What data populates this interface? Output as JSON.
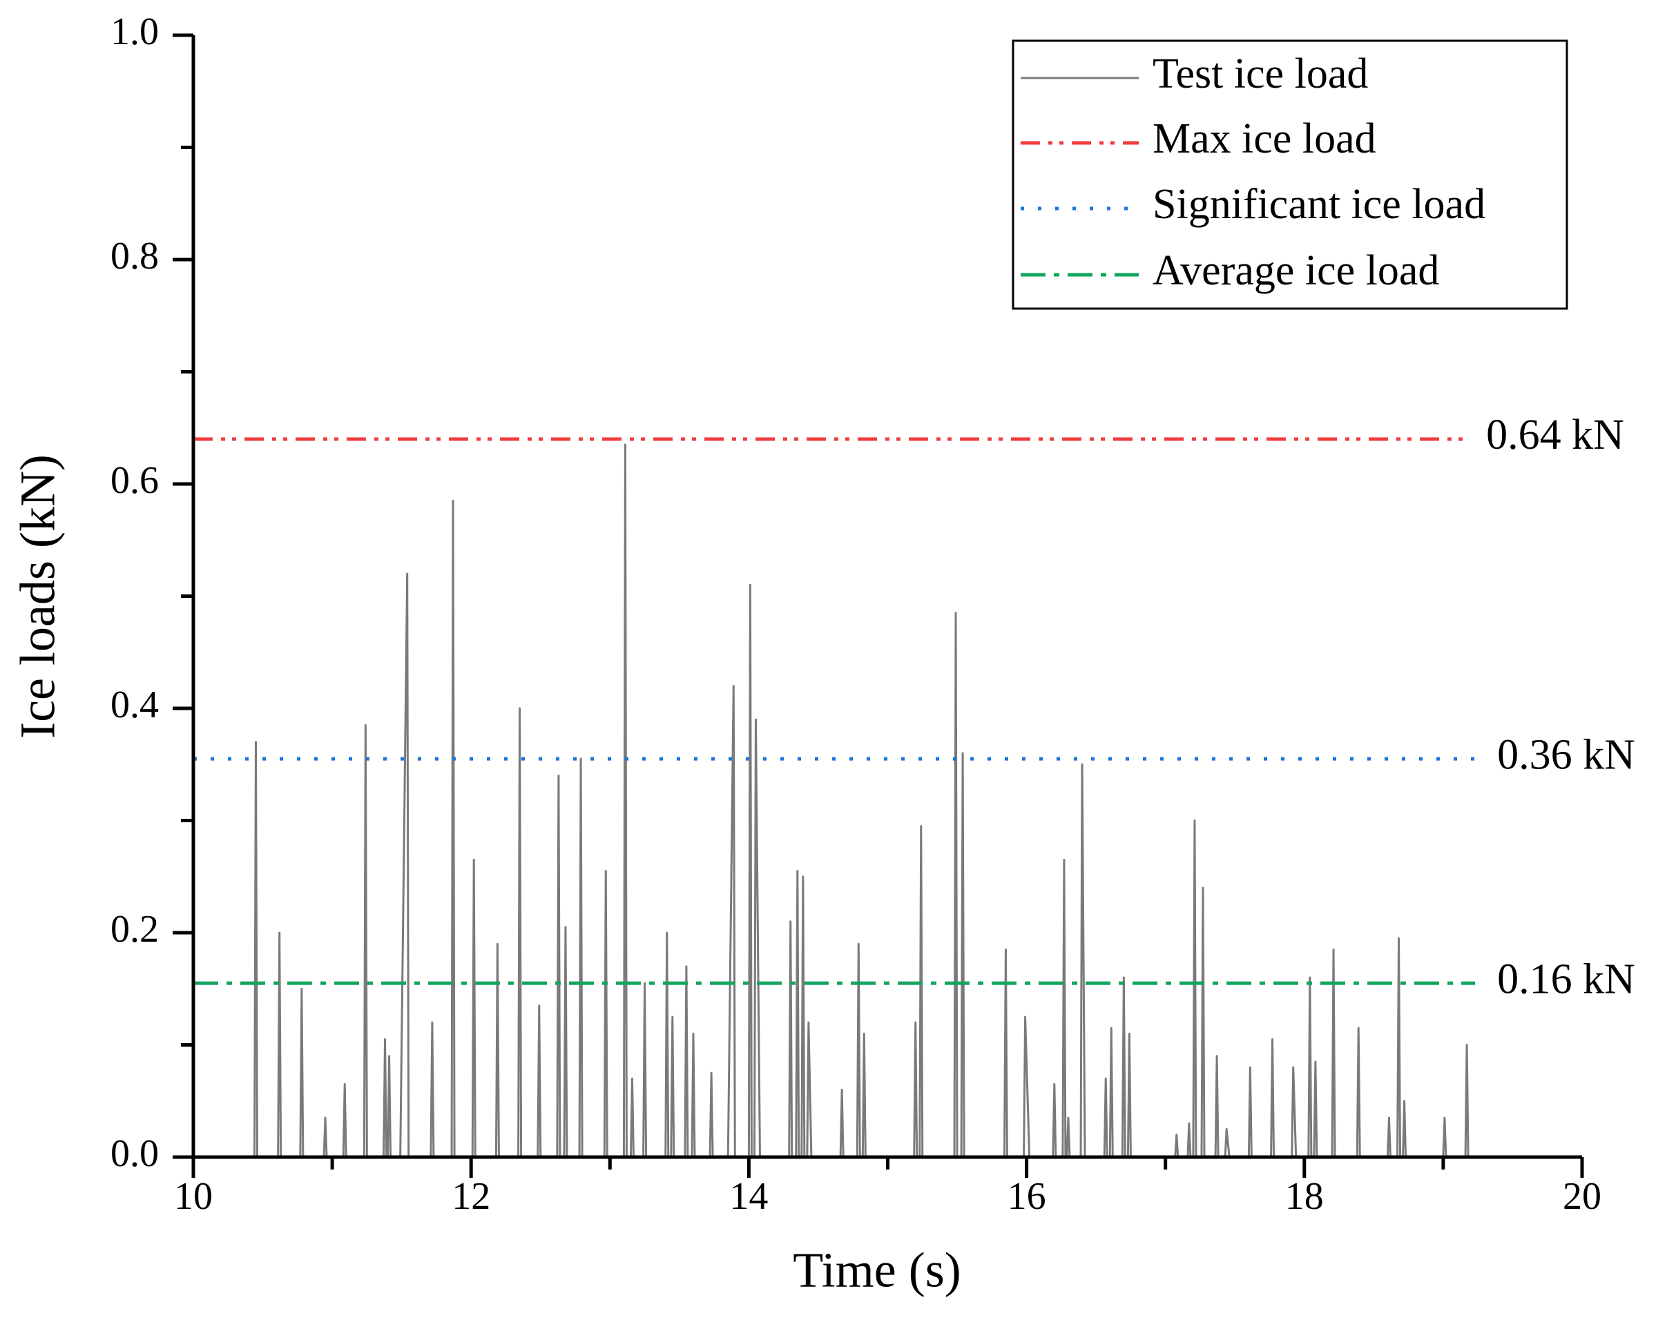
{
  "chart_data": {
    "type": "line",
    "xlabel": "Time (s)",
    "ylabel": "Ice loads (kN)",
    "xlim": [
      10,
      20
    ],
    "ylim": [
      0,
      1
    ],
    "xticks": [
      10,
      12,
      14,
      16,
      18,
      20
    ],
    "xminor_ticks": [
      11,
      13,
      15,
      17,
      19
    ],
    "yticks": [
      {
        "value": 0,
        "label": "0.0"
      },
      {
        "value": 0.2,
        "label": "0.2"
      },
      {
        "value": 0.4,
        "label": "0.4"
      },
      {
        "value": 0.6,
        "label": "0.6"
      },
      {
        "value": 0.8,
        "label": "0.8"
      },
      {
        "value": 1,
        "label": "1.0"
      }
    ],
    "yminor_ticks": [
      0.1,
      0.3,
      0.5,
      0.7,
      0.9
    ],
    "legend": "upper right",
    "series": [
      {
        "name": "Test ice load",
        "color": "#7a7a7a",
        "style": "solid",
        "x": [
          10.44,
          10.45,
          10.46,
          10.61,
          10.62,
          10.63,
          10.77,
          10.78,
          10.79,
          10.94,
          10.95,
          10.96,
          11.08,
          11.09,
          11.1,
          11.23,
          11.24,
          11.25,
          11.37,
          11.38,
          11.39,
          11.4,
          11.41,
          11.42,
          11.49,
          11.54,
          11.55,
          11.71,
          11.72,
          11.73,
          11.86,
          11.87,
          11.88,
          12.01,
          12.02,
          12.03,
          12.18,
          12.19,
          12.2,
          12.34,
          12.35,
          12.36,
          12.48,
          12.49,
          12.5,
          12.62,
          12.63,
          12.64,
          12.67,
          12.68,
          12.69,
          12.78,
          12.79,
          12.8,
          12.96,
          12.97,
          12.98,
          13.1,
          13.11,
          13.12,
          13.15,
          13.16,
          13.17,
          13.24,
          13.25,
          13.26,
          13.4,
          13.41,
          13.42,
          13.44,
          13.45,
          13.46,
          13.54,
          13.55,
          13.56,
          13.59,
          13.6,
          13.61,
          13.72,
          13.73,
          13.74,
          13.85,
          13.89,
          13.9,
          14,
          14.01,
          14.02,
          14.04,
          14.05,
          14.08,
          14.29,
          14.3,
          14.31,
          14.34,
          14.35,
          14.36,
          14.38,
          14.39,
          14.4,
          14.42,
          14.43,
          14.45,
          14.66,
          14.67,
          14.68,
          14.78,
          14.79,
          14.8,
          14.82,
          14.83,
          14.84,
          15.19,
          15.2,
          15.21,
          15.23,
          15.24,
          15.25,
          15.48,
          15.49,
          15.5,
          15.53,
          15.54,
          15.55,
          15.84,
          15.85,
          15.86,
          15.98,
          15.99,
          16.02,
          16.19,
          16.2,
          16.21,
          16.26,
          16.27,
          16.28,
          16.29,
          16.3,
          16.31,
          16.39,
          16.4,
          16.42,
          16.56,
          16.57,
          16.58,
          16.6,
          16.61,
          16.62,
          16.69,
          16.7,
          16.71,
          16.73,
          16.74,
          16.75,
          17.07,
          17.08,
          17.09,
          17.16,
          17.17,
          17.18,
          17.2,
          17.21,
          17.22,
          17.26,
          17.27,
          17.28,
          17.36,
          17.37,
          17.38,
          17.43,
          17.44,
          17.46,
          17.6,
          17.61,
          17.62,
          17.76,
          17.77,
          17.78,
          17.91,
          17.92,
          17.94,
          18.03,
          18.04,
          18.05,
          18.07,
          18.08,
          18.09,
          18.2,
          18.21,
          18.22,
          18.38,
          18.39,
          18.4,
          18.6,
          18.61,
          18.62,
          18.67,
          18.68,
          18.69,
          18.71,
          18.72,
          18.73,
          19,
          19.01,
          19.02,
          19.16,
          19.17,
          19.18
        ],
        "values": [
          0,
          0.37,
          0,
          0,
          0.2,
          0,
          0,
          0.15,
          0,
          0,
          0.035,
          0,
          0,
          0.065,
          0,
          0,
          0.385,
          0,
          0,
          0.105,
          0,
          0,
          0.09,
          0,
          0,
          0.52,
          0,
          0,
          0.12,
          0,
          0,
          0.585,
          0,
          0,
          0.265,
          0,
          0,
          0.19,
          0,
          0,
          0.4,
          0,
          0,
          0.135,
          0,
          0,
          0.34,
          0,
          0,
          0.205,
          0,
          0,
          0.355,
          0,
          0,
          0.255,
          0,
          0,
          0.635,
          0,
          0,
          0.07,
          0,
          0,
          0.155,
          0,
          0,
          0.2,
          0,
          0,
          0.125,
          0,
          0,
          0.17,
          0,
          0,
          0.11,
          0,
          0,
          0.075,
          0,
          0,
          0.42,
          0,
          0,
          0.51,
          0,
          0,
          0.39,
          0,
          0,
          0.21,
          0,
          0,
          0.255,
          0,
          0,
          0.25,
          0,
          0,
          0.12,
          0,
          0,
          0.06,
          0,
          0,
          0.19,
          0,
          0,
          0.11,
          0,
          0,
          0.12,
          0,
          0,
          0.295,
          0,
          0,
          0.485,
          0,
          0,
          0.36,
          0,
          0,
          0.185,
          0,
          0,
          0.125,
          0,
          0,
          0.065,
          0,
          0,
          0.265,
          0,
          0,
          0.035,
          0,
          0,
          0.35,
          0,
          0,
          0.07,
          0,
          0,
          0.115,
          0,
          0,
          0.16,
          0,
          0,
          0.11,
          0,
          0,
          0.02,
          0,
          0,
          0.03,
          0,
          0,
          0.3,
          0,
          0,
          0.24,
          0,
          0,
          0.09,
          0,
          0,
          0.025,
          0,
          0,
          0.08,
          0,
          0,
          0.105,
          0,
          0,
          0.08,
          0,
          0,
          0.16,
          0,
          0,
          0.085,
          0,
          0,
          0.185,
          0,
          0,
          0.115,
          0,
          0,
          0.035,
          0,
          0,
          0.195,
          0,
          0,
          0.05,
          0,
          0,
          0.035,
          0,
          0,
          0.1,
          0
        ]
      },
      {
        "name": "Max ice load",
        "color": "#f03c3c",
        "style": "dash-dot-dot",
        "x": [
          10,
          19.15
        ],
        "values": [
          0.64,
          0.64
        ],
        "label": "0.64 kN"
      },
      {
        "name": "Significant ice load",
        "color": "#1f74e0",
        "style": "dot",
        "x": [
          10,
          19.23
        ],
        "values": [
          0.355,
          0.355
        ],
        "label": "0.36 kN"
      },
      {
        "name": "Average ice load",
        "color": "#12a55c",
        "style": "dash-dot",
        "x": [
          10,
          19.23
        ],
        "values": [
          0.155,
          0.155
        ],
        "label": "0.16 kN"
      }
    ]
  }
}
